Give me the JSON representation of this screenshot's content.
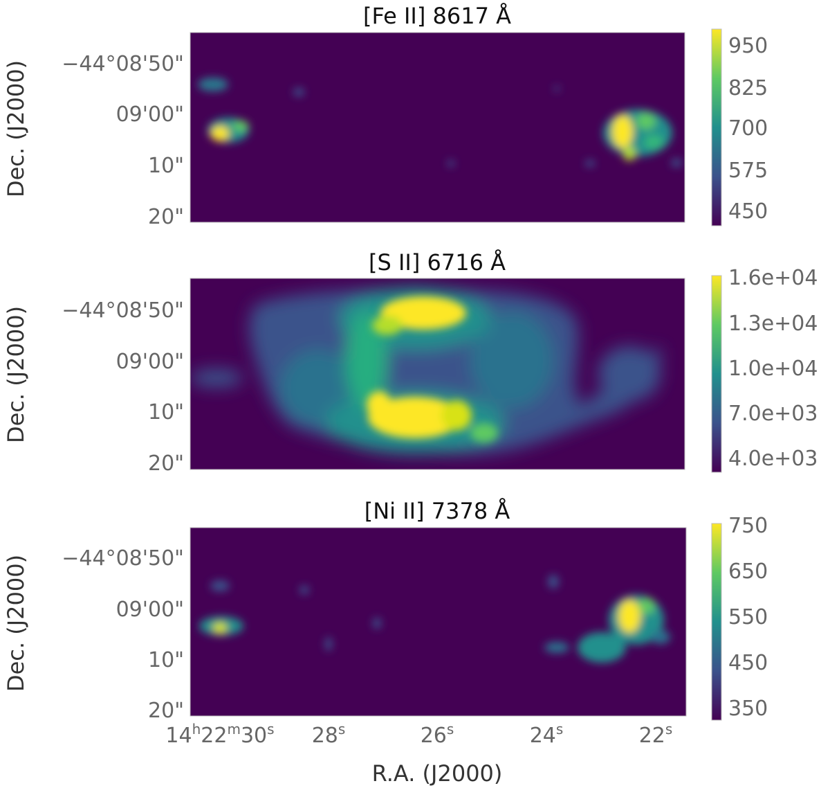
{
  "chart_data": [
    {
      "type": "heatmap",
      "title": "[Fe II] 8617 Å",
      "ylabel": "Dec. (J2000)",
      "y_ticks": [
        "−44°08'50\"",
        "09'00\"",
        "10\"",
        "20\""
      ],
      "colorbar_ticks": [
        "950",
        "825",
        "700",
        "575",
        "450"
      ],
      "colorbar_range": [
        400,
        1000
      ],
      "colormap": "viridis"
    },
    {
      "type": "heatmap",
      "title": "[S II] 6716 Å",
      "ylabel": "Dec. (J2000)",
      "y_ticks": [
        "−44°08'50\"",
        "09'00\"",
        "10\"",
        "20\""
      ],
      "colorbar_ticks": [
        "1.6e+04",
        "1.3e+04",
        "1.0e+04",
        "7.0e+03",
        "4.0e+03"
      ],
      "colorbar_range": [
        3500,
        16500
      ],
      "colormap": "viridis"
    },
    {
      "type": "heatmap",
      "title": "[Ni II] 7378 Å",
      "ylabel": "Dec. (J2000)",
      "xlabel": "R.A. (J2000)",
      "y_ticks": [
        "−44°08'50\"",
        "09'00\"",
        "10\"",
        "20\""
      ],
      "x_ticks": [
        "14h22m30s",
        "28s",
        "26s",
        "24s",
        "22s"
      ],
      "colorbar_ticks": [
        "750",
        "650",
        "550",
        "450",
        "350"
      ],
      "colorbar_range": [
        320,
        760
      ],
      "colormap": "viridis"
    }
  ],
  "colors": {
    "background": "#440154",
    "low": "#46327e",
    "mid": "#21908d",
    "high": "#5ec962",
    "peak": "#fde725"
  }
}
